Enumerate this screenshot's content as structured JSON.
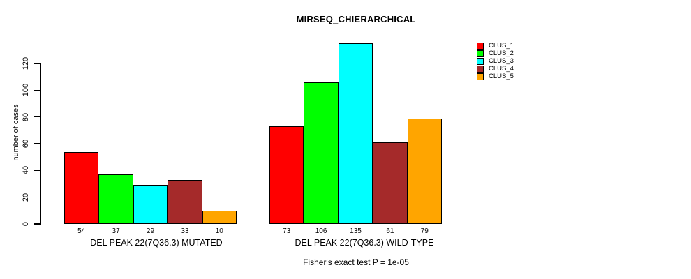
{
  "figure": {
    "title": "MIRSEQ_CHIERARCHICAL",
    "footnote": "Fisher's exact test P = 1e-05"
  },
  "chart_data": {
    "type": "bar",
    "title": "MIRSEQ_CHIERARCHICAL",
    "xlabel": "",
    "ylabel": "number of cases",
    "groups": [
      {
        "label": "DEL PEAK 22(7Q36.3) MUTATED",
        "values": [
          54,
          37,
          29,
          33,
          10
        ]
      },
      {
        "label": "DEL PEAK 22(7Q36.3) WILD-TYPE",
        "values": [
          73,
          106,
          135,
          61,
          79
        ]
      }
    ],
    "series": [
      {
        "name": "CLUS_1",
        "color": "#FF0000",
        "values": [
          54,
          73
        ]
      },
      {
        "name": "CLUS_2",
        "color": "#00FF00",
        "values": [
          37,
          106
        ]
      },
      {
        "name": "CLUS_3",
        "color": "#00FFFF",
        "values": [
          29,
          135
        ]
      },
      {
        "name": "CLUS_4",
        "color": "#A52A2A",
        "values": [
          33,
          61
        ]
      },
      {
        "name": "CLUS_5",
        "color": "#FFA500",
        "values": [
          10,
          79
        ]
      }
    ],
    "yticks": [
      0,
      20,
      40,
      60,
      80,
      100,
      120
    ],
    "ylim": [
      0,
      137
    ],
    "grid": false,
    "legend_position": "top-right",
    "bar_value_labels": true,
    "annotation": "Fisher's exact test P = 1e-05"
  }
}
